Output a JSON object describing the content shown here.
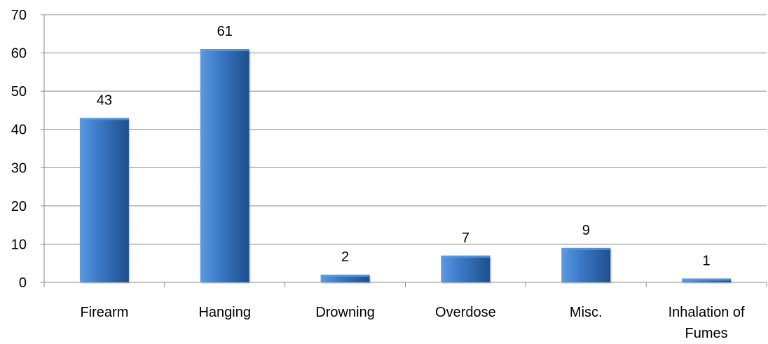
{
  "chart_data": {
    "type": "bar",
    "title": "",
    "xlabel": "",
    "ylabel": "",
    "categories": [
      [
        "Firearm"
      ],
      [
        "Hanging"
      ],
      [
        "Drowning"
      ],
      [
        "Overdose"
      ],
      [
        "Misc."
      ],
      [
        "Inhalation of",
        "Fumes"
      ]
    ],
    "values": [
      43,
      61,
      2,
      7,
      9,
      1
    ],
    "data_labels": [
      "43",
      "61",
      "2",
      "7",
      "9",
      "1"
    ],
    "ylim": [
      0,
      70
    ],
    "yticks": [
      0,
      10,
      20,
      30,
      40,
      50,
      60,
      70
    ],
    "ytick_labels": [
      "0",
      "10",
      "20",
      "30",
      "40",
      "50",
      "60",
      "70"
    ],
    "grid": true,
    "legend": "none",
    "colors": {
      "bar_light": "#5b9be0",
      "bar_mid": "#3d7cc9",
      "bar_dark": "#1f4f8c",
      "grid": "#8c8c8c",
      "axis": "#8c8c8c"
    }
  }
}
